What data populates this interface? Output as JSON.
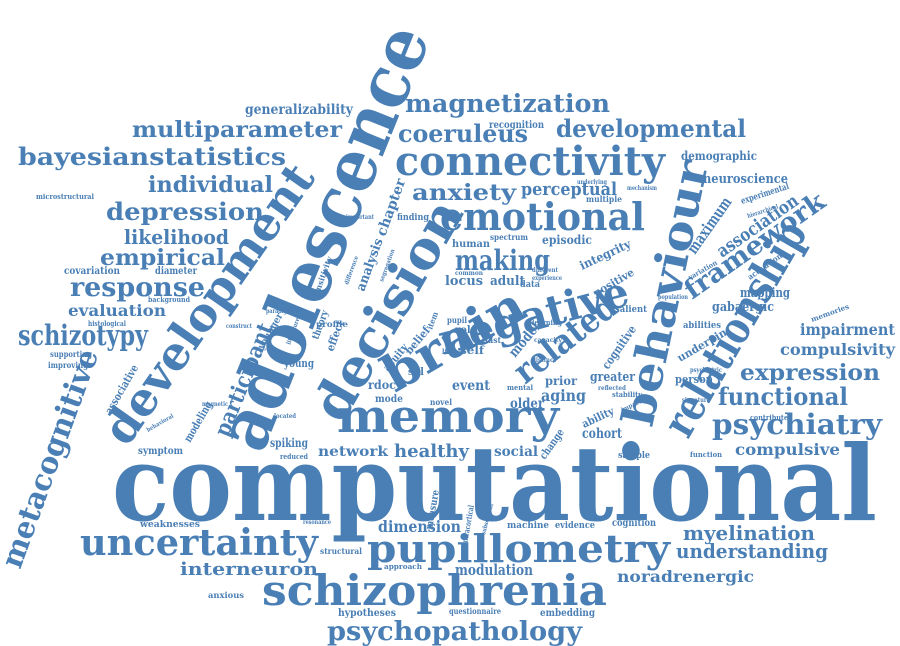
{
  "color": "#4a7fb5",
  "words": [
    "computational",
    "adolescence",
    "development",
    "decision",
    "memory",
    "brain",
    "negative",
    "relationship",
    "behaviour",
    "connectivity",
    "emotional",
    "pupillometry",
    "schizophrenia",
    "uncertainty",
    "psychopathology",
    "metacognitive",
    "magnetization",
    "multiparameter",
    "developmental",
    "coeruleus",
    "bayesianstatistics",
    "individual",
    "depression",
    "likelihood",
    "empirical",
    "response",
    "evaluation",
    "schizotypy",
    "anxiety",
    "perceptual",
    "making",
    "framework",
    "association",
    "maximum",
    "neuroscience",
    "demographic",
    "generalizability",
    "recognition",
    "related",
    "participant",
    "expression",
    "functional",
    "psychiatry",
    "compulsivity",
    "impairment",
    "compulsive",
    "myelination",
    "understanding",
    "noradrenergic",
    "interneuron",
    "dimension",
    "modulation",
    "hypotheses",
    "questionnaire",
    "embedding",
    "network",
    "healthy",
    "social",
    "cohort",
    "aging",
    "event",
    "older",
    "prior",
    "greater",
    "person",
    "mapping",
    "gabaergic",
    "underpin",
    "abilities",
    "cognitive",
    "positive",
    "integrity",
    "episodic",
    "salient",
    "locus",
    "adult",
    "human",
    "spectrum",
    "chapter",
    "analysis",
    "sensitivity",
    "profile",
    "theory",
    "acuity",
    "belief",
    "model",
    "mode",
    "novel",
    "rdoc",
    "young",
    "spiking",
    "symptom",
    "reduced",
    "located",
    "modeling",
    "younger",
    "associative",
    "supporting",
    "improving",
    "histological",
    "background",
    "diameter",
    "covariation",
    "weaknesses",
    "resonance",
    "structural",
    "approach",
    "anxious",
    "machine",
    "evidence",
    "cognition",
    "sample",
    "function",
    "contribute",
    "memories",
    "activation",
    "experimental",
    "hierarchical",
    "variation",
    "population",
    "signature",
    "psychiatric",
    "finding",
    "multiple",
    "underlying",
    "mechanism",
    "effect",
    "self",
    "role",
    "data",
    "common",
    "different",
    "experience",
    "learning",
    "distinct",
    "mental",
    "capacity",
    "ability",
    "change",
    "impact",
    "stability",
    "reflected",
    "literature",
    "paradigm",
    "construct",
    "important",
    "microstructural",
    "magnetic",
    "behavioral",
    "difference",
    "segregation",
    "fast",
    "link",
    "pupil",
    "spl",
    "item",
    "measure",
    "subsequent",
    "intracortical"
  ]
}
